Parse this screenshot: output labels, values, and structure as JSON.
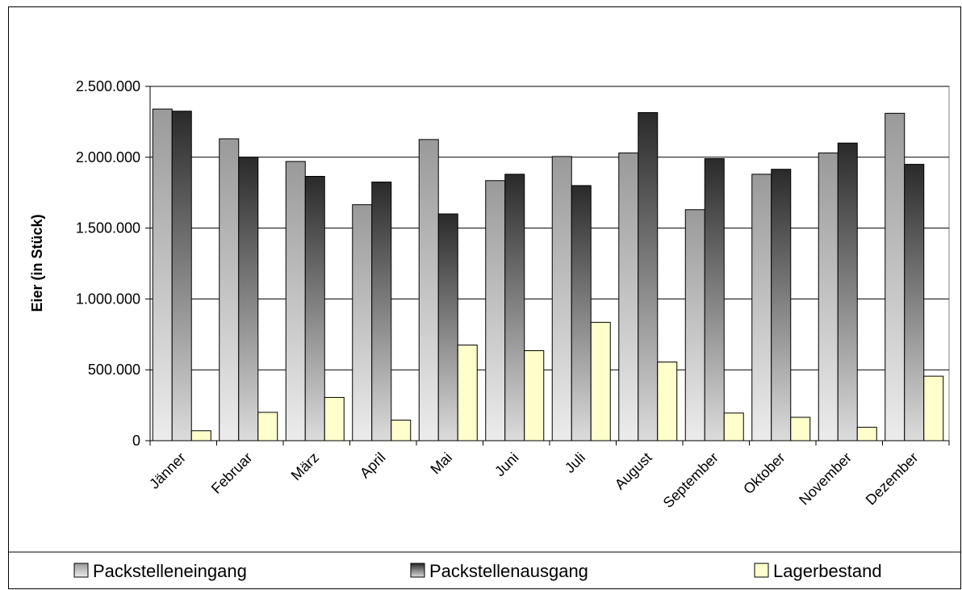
{
  "chart_data": {
    "type": "bar",
    "title": "",
    "xlabel": "",
    "ylabel": "Eier (in Stück)",
    "ylim": [
      0,
      2500000
    ],
    "yticks": [
      0,
      500000,
      1000000,
      1500000,
      2000000,
      2500000
    ],
    "ytick_labels": [
      "0",
      "500.000",
      "1.000.000",
      "1.500.000",
      "2.000.000",
      "2.500.000"
    ],
    "grid": true,
    "legend_position": "bottom",
    "categories": [
      "Jänner",
      "Februar",
      "März",
      "April",
      "Mai",
      "Juni",
      "Juli",
      "August",
      "September",
      "Oktober",
      "November",
      "Dezember"
    ],
    "series": [
      {
        "name": "Packstelleneingang",
        "color": "#b8b8b8",
        "values": [
          2340000,
          2130000,
          1970000,
          1665000,
          2125000,
          1835000,
          2005000,
          2030000,
          1630000,
          1880000,
          2030000,
          2310000
        ]
      },
      {
        "name": "Packstellenausgang",
        "color": "#404040",
        "values": [
          2325000,
          2000000,
          1865000,
          1825000,
          1600000,
          1880000,
          1800000,
          2315000,
          1990000,
          1915000,
          2100000,
          1950000
        ]
      },
      {
        "name": "Lagerbestand",
        "color": "#ffffcc",
        "values": [
          70000,
          200000,
          305000,
          145000,
          675000,
          635000,
          835000,
          555000,
          195000,
          165000,
          95000,
          455000
        ]
      }
    ]
  }
}
